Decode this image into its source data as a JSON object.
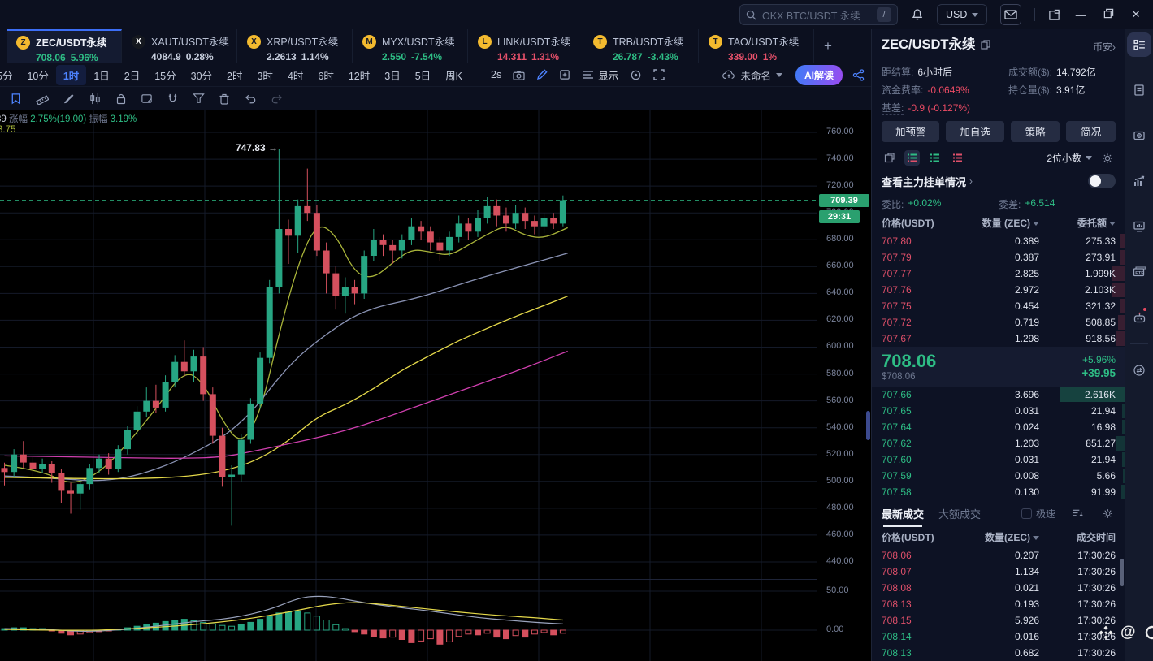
{
  "titlebar": {
    "search_placeholder": "OKX BTC/USDT 永续",
    "search_shortcut": "/",
    "currency": "USD"
  },
  "tabs": [
    {
      "symbol": "ZEC/USDT永续",
      "price": "708.06",
      "change": "5.96%",
      "state": "up",
      "active": true,
      "initial": "Z",
      "icon_color": "#f3ba2f",
      "icon_text": "#1a1d26"
    },
    {
      "symbol": "XAUT/USDT永续",
      "price": "4084.9",
      "change": "0.28%",
      "state": "flat",
      "active": false,
      "initial": "X",
      "icon_color": "#15181f",
      "icon_text": "#ffffff"
    },
    {
      "symbol": "X RP/USDT永续",
      "price": "2.2613",
      "change": "1.14%",
      "state": "flat",
      "active": false,
      "initial": "X",
      "icon_color": "#f3ba2f",
      "icon_text": "#1a1d26"
    },
    {
      "symbol": "MYX/USDT永续",
      "price": "2.550",
      "change": "-7.54%",
      "state": "up",
      "active": false,
      "initial": "M",
      "icon_color": "#f3ba2f",
      "icon_text": "#1a1d26"
    },
    {
      "symbol": "LINK/USDT永续",
      "price": "14.311",
      "change": "1.31%",
      "state": "down",
      "active": false,
      "initial": "L",
      "icon_color": "#f3ba2f",
      "icon_text": "#1a1d26"
    },
    {
      "symbol": "TRB/USDT永续",
      "price": "26.787",
      "change": "-3.43%",
      "state": "up",
      "active": false,
      "initial": "T",
      "icon_color": "#f3ba2f",
      "icon_text": "#1a1d26"
    },
    {
      "symbol": "TAO/USDT永续",
      "price": "339.00",
      "change": "1%",
      "state": "down",
      "active": false,
      "initial": "T",
      "icon_color": "#f3ba2f",
      "icon_text": "#1a1d26"
    }
  ],
  "toolbar": {
    "timeframes": [
      "5分",
      "10分",
      "1时",
      "1日",
      "2日",
      "15分",
      "30分",
      "2时",
      "3时",
      "4时",
      "6时",
      "12时",
      "3日",
      "5日",
      "周K"
    ],
    "active_timeframe": "1时",
    "replay_speed": "2s",
    "display_label": "显示",
    "layout_name": "未命名",
    "ai_button": "AI解读"
  },
  "legend": {
    "p1": "39",
    "l1": "涨幅",
    "v1": "2.75%(19.00)",
    "l2": "振幅",
    "v2": "3.19%",
    "ma": "3.75"
  },
  "panel": {
    "symbol": "ZEC/USDT永续",
    "exchange": "币安",
    "exchange_arrow": "›",
    "stats": {
      "settle_label": "距结算:",
      "settle": "6小时后",
      "volume_label": "成交额($):",
      "volume": "14.792亿",
      "funding_label": "资金费率:",
      "funding": "-0.0649%",
      "oi_label": "持仓量($):",
      "oi": "3.91亿",
      "basis_label": "基差:",
      "basis": "-0.9 (-0.127%)"
    },
    "buttons": [
      "加预警",
      "加自选",
      "策略",
      "简况"
    ],
    "precision": "2位小数",
    "whale_link": "查看主力挂单情况",
    "whale_arrow": "›",
    "ratio_label": "委比:",
    "ratio_value": "+0.02%",
    "delta_label": "委差:",
    "delta_value": "+6.514",
    "book_headers": [
      "价格(USDT)",
      "数量 (ZEC)",
      "委托额"
    ],
    "asks": [
      {
        "price": "707.80",
        "amount": "0.389",
        "total": "275.33",
        "depth": 6
      },
      {
        "price": "707.79",
        "amount": "0.387",
        "total": "273.91",
        "depth": 6
      },
      {
        "price": "707.77",
        "amount": "2.825",
        "total": "1.999K",
        "depth": 16
      },
      {
        "price": "707.76",
        "amount": "2.972",
        "total": "2.103K",
        "depth": 17
      },
      {
        "price": "707.75",
        "amount": "0.454",
        "total": "321.32",
        "depth": 7
      },
      {
        "price": "707.72",
        "amount": "0.719",
        "total": "508.85",
        "depth": 9
      },
      {
        "price": "707.67",
        "amount": "1.298",
        "total": "918.56",
        "depth": 12
      }
    ],
    "last": {
      "price": "708.06",
      "usd": "$708.06",
      "pct": "+5.96%",
      "abs": "+39.95"
    },
    "bids": [
      {
        "price": "707.66",
        "amount": "3.696",
        "total": "2.616K",
        "depth": 80
      },
      {
        "price": "707.65",
        "amount": "0.031",
        "total": "21.94",
        "depth": 4
      },
      {
        "price": "707.64",
        "amount": "0.024",
        "total": "16.98",
        "depth": 4
      },
      {
        "price": "707.62",
        "amount": "1.203",
        "total": "851.27",
        "depth": 11
      },
      {
        "price": "707.60",
        "amount": "0.031",
        "total": "21.94",
        "depth": 4
      },
      {
        "price": "707.59",
        "amount": "0.008",
        "total": "5.66",
        "depth": 3
      },
      {
        "price": "707.58",
        "amount": "0.130",
        "total": "91.99",
        "depth": 5
      }
    ],
    "trades": {
      "tab_latest": "最新成交",
      "tab_large": "大额成交",
      "fast_label": "极速",
      "headers": [
        "价格(USDT)",
        "数量(ZEC)",
        "成交时间"
      ],
      "rows": [
        {
          "price": "708.06",
          "amount": "0.207",
          "time": "17:30:26",
          "side": "down"
        },
        {
          "price": "708.07",
          "amount": "1.134",
          "time": "17:30:26",
          "side": "down"
        },
        {
          "price": "708.08",
          "amount": "0.021",
          "time": "17:30:26",
          "side": "down"
        },
        {
          "price": "708.13",
          "amount": "0.193",
          "time": "17:30:26",
          "side": "down"
        },
        {
          "price": "708.15",
          "amount": "5.926",
          "time": "17:30:26",
          "side": "down"
        },
        {
          "price": "708.14",
          "amount": "0.016",
          "time": "17:30:26",
          "side": "up"
        },
        {
          "price": "708.13",
          "amount": "0.682",
          "time": "17:30:26",
          "side": "up"
        }
      ]
    }
  },
  "watermark": {
    "at": "@"
  },
  "chart_data": {
    "type": "candlestick",
    "symbol": "ZEC/USDT永续",
    "interval": "1时",
    "last_price": 709.39,
    "countdown": "29:31",
    "high_annotation": "747.83",
    "high_arrow": "→",
    "y_ticks": [
      760,
      740,
      720,
      700,
      680,
      660,
      640,
      620,
      600,
      580,
      560,
      540,
      520,
      500,
      480,
      460,
      440
    ],
    "sub_ticks": [
      50,
      0
    ],
    "colors": {
      "up": "#27a683",
      "down": "#d5505e",
      "grid": "#141a29",
      "dashed": "#2ebd85"
    },
    "candles": [
      [
        510,
        514,
        497,
        507
      ],
      [
        507,
        524,
        503,
        520
      ],
      [
        520,
        530,
        510,
        514
      ],
      [
        514,
        518,
        504,
        509
      ],
      [
        509,
        517,
        506,
        513
      ],
      [
        513,
        515,
        499,
        506
      ],
      [
        506,
        509,
        484,
        493
      ],
      [
        493,
        499,
        476,
        491
      ],
      [
        491,
        501,
        479,
        498
      ],
      [
        498,
        513,
        494,
        510
      ],
      [
        510,
        520,
        506,
        517
      ],
      [
        517,
        521,
        505,
        509
      ],
      [
        509,
        527,
        507,
        524
      ],
      [
        524,
        541,
        520,
        538
      ],
      [
        538,
        556,
        534,
        552
      ],
      [
        552,
        570,
        548,
        560
      ],
      [
        560,
        572,
        551,
        555
      ],
      [
        555,
        579,
        552,
        574
      ],
      [
        574,
        594,
        570,
        589
      ],
      [
        589,
        605,
        578,
        582
      ],
      [
        582,
        598,
        574,
        593
      ],
      [
        593,
        600,
        560,
        565
      ],
      [
        565,
        570,
        528,
        534
      ],
      [
        534,
        540,
        496,
        503
      ],
      [
        503,
        512,
        467,
        505
      ],
      [
        505,
        535,
        500,
        531
      ],
      [
        531,
        562,
        528,
        558
      ],
      [
        558,
        596,
        554,
        592
      ],
      [
        592,
        650,
        588,
        645
      ],
      [
        645,
        747.8,
        640,
        688
      ],
      [
        688,
        695,
        662,
        683
      ],
      [
        683,
        710,
        670,
        705
      ],
      [
        705,
        733,
        694,
        700
      ],
      [
        700,
        706,
        668,
        672
      ],
      [
        672,
        678,
        640,
        655
      ],
      [
        655,
        660,
        628,
        638
      ],
      [
        638,
        652,
        625,
        645
      ],
      [
        645,
        650,
        632,
        640
      ],
      [
        640,
        672,
        636,
        668
      ],
      [
        668,
        688,
        664,
        680
      ],
      [
        680,
        684,
        668,
        676
      ],
      [
        676,
        680,
        662,
        672
      ],
      [
        672,
        684,
        666,
        680
      ],
      [
        680,
        696,
        676,
        690
      ],
      [
        690,
        694,
        680,
        686
      ],
      [
        686,
        690,
        672,
        678
      ],
      [
        678,
        682,
        664,
        672
      ],
      [
        672,
        686,
        668,
        682
      ],
      [
        682,
        698,
        678,
        692
      ],
      [
        692,
        696,
        680,
        686
      ],
      [
        686,
        702,
        682,
        696
      ],
      [
        696,
        712,
        692,
        705
      ],
      [
        705,
        710,
        690,
        698
      ],
      [
        698,
        704,
        686,
        692
      ],
      [
        692,
        706,
        688,
        700
      ],
      [
        700,
        704,
        688,
        694
      ],
      [
        694,
        698,
        684,
        690
      ],
      [
        690,
        700,
        685,
        696
      ],
      [
        696,
        700,
        688,
        692
      ],
      [
        692,
        713,
        690,
        709.4
      ]
    ],
    "ma_lines": [
      {
        "name": "MA-fast",
        "color": "#a9b43a",
        "points": [
          [
            0,
            512
          ],
          [
            4,
            508
          ],
          [
            7,
            497
          ],
          [
            10,
            506
          ],
          [
            13,
            528
          ],
          [
            16,
            554
          ],
          [
            19,
            583
          ],
          [
            21,
            574
          ],
          [
            23,
            545
          ],
          [
            25,
            527
          ],
          [
            27,
            550
          ],
          [
            29,
            610
          ],
          [
            31,
            662
          ],
          [
            33,
            693
          ],
          [
            35,
            684
          ],
          [
            37,
            655
          ],
          [
            39,
            651
          ],
          [
            41,
            663
          ],
          [
            43,
            673
          ],
          [
            45,
            671
          ],
          [
            47,
            668
          ],
          [
            49,
            676
          ],
          [
            51,
            684
          ],
          [
            53,
            691
          ],
          [
            55,
            683
          ],
          [
            57,
            681
          ],
          [
            59.5,
            689
          ]
        ]
      },
      {
        "name": "MA-mid",
        "color": "#8a93b4",
        "points": [
          [
            0,
            504
          ],
          [
            6,
            502
          ],
          [
            10,
            500
          ],
          [
            14,
            504
          ],
          [
            19,
            517
          ],
          [
            25,
            541
          ],
          [
            30,
            587
          ],
          [
            34,
            610
          ],
          [
            38,
            628
          ],
          [
            44,
            637
          ],
          [
            49,
            649
          ],
          [
            55,
            661
          ],
          [
            59.5,
            670
          ]
        ]
      },
      {
        "name": "MA-slow",
        "color": "#e5d94a",
        "points": [
          [
            0,
            503
          ],
          [
            8,
            502
          ],
          [
            15,
            502
          ],
          [
            20,
            504
          ],
          [
            24,
            509
          ],
          [
            27,
            517
          ],
          [
            30,
            530
          ],
          [
            33,
            548
          ],
          [
            36,
            557
          ],
          [
            39,
            569
          ],
          [
            42,
            583
          ],
          [
            45,
            594
          ],
          [
            48,
            605
          ],
          [
            51,
            614
          ],
          [
            54,
            623
          ],
          [
            57,
            631
          ],
          [
            59.5,
            638
          ]
        ]
      },
      {
        "name": "MA-long",
        "color": "#cf3fae",
        "points": [
          [
            0,
            519
          ],
          [
            10,
            518
          ],
          [
            18,
            517
          ],
          [
            23,
            518
          ],
          [
            26,
            522
          ],
          [
            30,
            528
          ],
          [
            34,
            534
          ],
          [
            38,
            542
          ],
          [
            42,
            552
          ],
          [
            46,
            562
          ],
          [
            50,
            572
          ],
          [
            54,
            582
          ],
          [
            57,
            590
          ],
          [
            59.5,
            597
          ]
        ]
      }
    ],
    "macd": {
      "histogram": [
        2,
        3,
        3,
        2,
        2,
        -1,
        -4,
        -6,
        -5,
        -3,
        -2,
        -1,
        1,
        3,
        5,
        7,
        9,
        11,
        13,
        14,
        12,
        10,
        8,
        6,
        5,
        7,
        10,
        14,
        18,
        22,
        23,
        24,
        22,
        18,
        13,
        7,
        2,
        -2,
        -5,
        -8,
        -10,
        -9,
        -12,
        -16,
        -14,
        -11,
        -18,
        -15,
        -8,
        -5,
        -6,
        -4,
        -9,
        -11,
        -7,
        -9,
        -5,
        -3,
        -6,
        -4
      ],
      "dif_color": "#9aa3bd",
      "dea_color": "#e5d94a",
      "dif_points": [
        [
          0,
          2
        ],
        [
          5,
          1
        ],
        [
          8,
          -2
        ],
        [
          12,
          0
        ],
        [
          16,
          5
        ],
        [
          20,
          11
        ],
        [
          24,
          15
        ],
        [
          28,
          26
        ],
        [
          31,
          41
        ],
        [
          33,
          44
        ],
        [
          35,
          42
        ],
        [
          38,
          35
        ],
        [
          41,
          30
        ],
        [
          44,
          26
        ],
        [
          47,
          21
        ],
        [
          50,
          16
        ],
        [
          53,
          13
        ],
        [
          56,
          10
        ],
        [
          59,
          8
        ]
      ],
      "dea_points": [
        [
          0,
          1
        ],
        [
          8,
          -1
        ],
        [
          14,
          2
        ],
        [
          20,
          7
        ],
        [
          25,
          13
        ],
        [
          30,
          23
        ],
        [
          34,
          33
        ],
        [
          37,
          36
        ],
        [
          40,
          33
        ],
        [
          44,
          28
        ],
        [
          48,
          23
        ],
        [
          52,
          19
        ],
        [
          56,
          16
        ],
        [
          59,
          13
        ]
      ]
    }
  }
}
